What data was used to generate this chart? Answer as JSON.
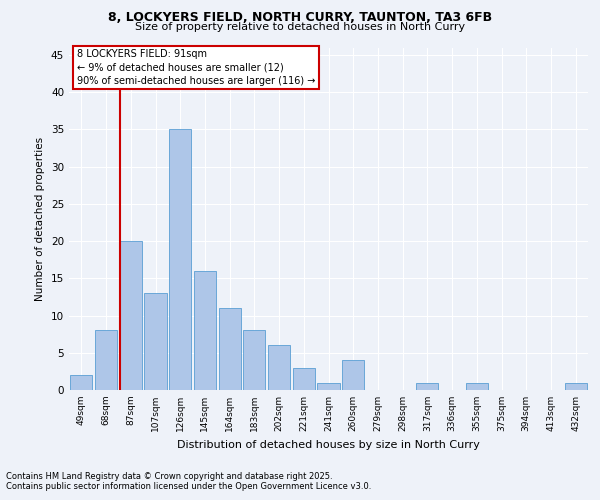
{
  "title1": "8, LOCKYERS FIELD, NORTH CURRY, TAUNTON, TA3 6FB",
  "title2": "Size of property relative to detached houses in North Curry",
  "xlabel": "Distribution of detached houses by size in North Curry",
  "ylabel": "Number of detached properties",
  "bar_labels": [
    "49sqm",
    "68sqm",
    "87sqm",
    "107sqm",
    "126sqm",
    "145sqm",
    "164sqm",
    "183sqm",
    "202sqm",
    "221sqm",
    "241sqm",
    "260sqm",
    "279sqm",
    "298sqm",
    "317sqm",
    "336sqm",
    "355sqm",
    "375sqm",
    "394sqm",
    "413sqm",
    "432sqm"
  ],
  "bar_values": [
    2,
    8,
    20,
    13,
    35,
    16,
    11,
    8,
    6,
    3,
    1,
    4,
    0,
    0,
    1,
    0,
    1,
    0,
    0,
    0,
    1
  ],
  "bar_color": "#aec6e8",
  "bar_edge_color": "#5a9fd4",
  "annotation_title": "8 LOCKYERS FIELD: 91sqm",
  "annotation_line1": "← 9% of detached houses are smaller (12)",
  "annotation_line2": "90% of semi-detached houses are larger (116) →",
  "annotation_box_color": "#ffffff",
  "annotation_box_edge": "#cc0000",
  "vline_color": "#cc0000",
  "vline_x": 1.575,
  "ylim": [
    0,
    46
  ],
  "yticks": [
    0,
    5,
    10,
    15,
    20,
    25,
    30,
    35,
    40,
    45
  ],
  "bg_color": "#eef2f9",
  "grid_color": "#ffffff",
  "footer1": "Contains HM Land Registry data © Crown copyright and database right 2025.",
  "footer2": "Contains public sector information licensed under the Open Government Licence v3.0."
}
